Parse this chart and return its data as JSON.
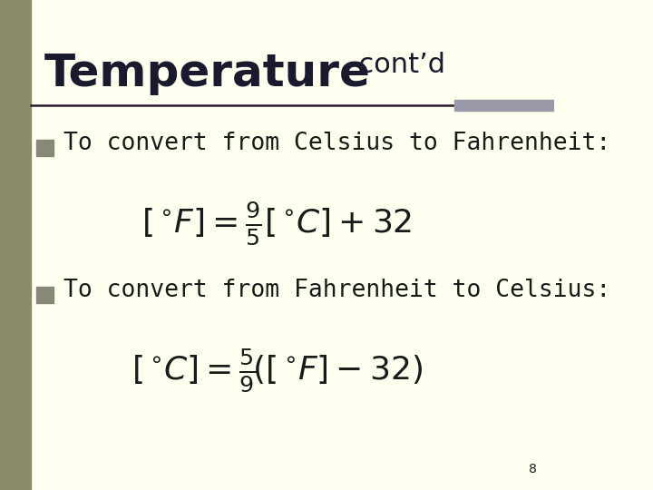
{
  "background_color": "#FFFFF0",
  "left_bar_color": "#8B8B6B",
  "title_large": "Temperature",
  "title_small": ", cont’d",
  "title_color": "#1a1a2e",
  "divider_color": "#2a1a2e",
  "divider_right_box_color": "#9999aa",
  "bullet_color": "#888877",
  "bullet1_text": "To convert from Celsius to Fahrenheit:",
  "bullet2_text": "To convert from Fahrenheit to Celsius:",
  "formula1": "$\\left[{^\\circ\\!F}\\right] = \\frac{9}{5}\\left[{^\\circ\\!C}\\right]+32$",
  "formula2": "$\\left[{^\\circ\\!C}\\right] = \\frac{5}{9}\\!\\left(\\left[{^\\circ\\!F}\\right]-32\\right)$",
  "text_color": "#1a1a1a",
  "formula_color": "#1a1a1a",
  "page_number": "8",
  "title_fontsize": 36,
  "title_small_fontsize": 22,
  "bullet_fontsize": 19,
  "formula_fontsize": 26
}
